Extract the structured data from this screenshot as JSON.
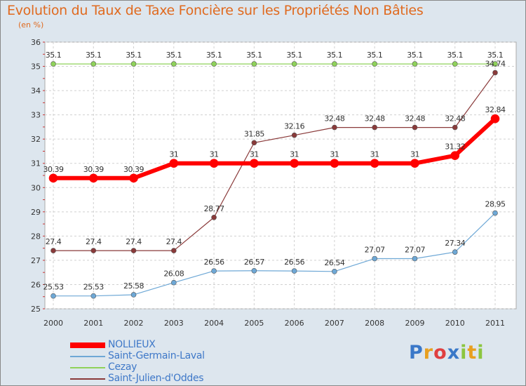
{
  "chart_data": {
    "type": "line",
    "title": "Evolution du Taux de Taxe Foncière sur les Propriétés Non Bâties",
    "ylabel": "(en %)",
    "xlabel": "",
    "x": [
      "2000",
      "2001",
      "2002",
      "2003",
      "2004",
      "2005",
      "2006",
      "2007",
      "2008",
      "2009",
      "2010",
      "2011"
    ],
    "ylim": [
      25,
      36
    ],
    "yticks": [
      25,
      26,
      27,
      28,
      29,
      30,
      31,
      32,
      33,
      34,
      35,
      36
    ],
    "grid": true,
    "series": [
      {
        "name": "NOLLIEUX",
        "color": "#ff0000",
        "values": [
          30.39,
          30.39,
          30.39,
          31,
          31,
          31,
          31,
          31,
          31,
          31,
          31.32,
          32.84
        ],
        "labels": [
          "30.39",
          "30.39",
          "30.39",
          "31",
          "31",
          "31",
          "31",
          "31",
          "31",
          "31",
          "31.32",
          "32.84"
        ]
      },
      {
        "name": "Saint-Germain-Laval",
        "color": "#6ea8d6",
        "values": [
          25.53,
          25.53,
          25.58,
          26.08,
          26.56,
          26.57,
          26.56,
          26.54,
          27.07,
          27.07,
          27.34,
          28.95
        ],
        "labels": [
          "25.53",
          "25.53",
          "25.58",
          "26.08",
          "26.56",
          "26.57",
          "26.56",
          "26.54",
          "27.07",
          "27.07",
          "27.34",
          "28.95"
        ]
      },
      {
        "name": "Cezay",
        "color": "#8fd25a",
        "values": [
          35.1,
          35.1,
          35.1,
          35.1,
          35.1,
          35.1,
          35.1,
          35.1,
          35.1,
          35.1,
          35.1,
          35.1
        ],
        "labels": [
          "35.1",
          "35.1",
          "35.1",
          "35.1",
          "35.1",
          "35.1",
          "35.1",
          "35.1",
          "35.1",
          "35.1",
          "35.1",
          "35.1"
        ]
      },
      {
        "name": "Saint-Julien-d'Oddes",
        "color": "#8a3a3a",
        "values": [
          27.4,
          27.4,
          27.4,
          27.4,
          28.77,
          31.85,
          32.16,
          32.48,
          32.48,
          32.48,
          32.48,
          34.74
        ],
        "labels": [
          "27.4",
          "27.4",
          "27.4",
          "27.4",
          "28.77",
          "31.85",
          "32.16",
          "32.48",
          "32.48",
          "32.48",
          "32.48",
          "34.74"
        ]
      }
    ]
  },
  "brand": {
    "letters": [
      "P",
      "r",
      "o",
      "x",
      "i",
      "t",
      "i"
    ],
    "colors": [
      "#3a78c8",
      "#e8a020",
      "#e04040",
      "#3a78c8",
      "#8cc63f",
      "#e8a020",
      "#8cc63f"
    ]
  }
}
